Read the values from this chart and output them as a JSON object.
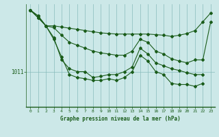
{
  "xlabel": "Graphe pression niveau de la mer (hPa)",
  "background_color": "#cce8e8",
  "grid_color": "#88bbbb",
  "line_color": "#1a5c1a",
  "xlim": [
    -0.5,
    23.5
  ],
  "ylim_bottom": 1005.0,
  "ylim_top": 1022.5,
  "ytick_label": "1011",
  "ytick_value": 1011,
  "xticklabels": [
    "0",
    "1",
    "2",
    "3",
    "4",
    "5",
    "6",
    "7",
    "8",
    "9",
    "10",
    "11",
    "12",
    "13",
    "14",
    "15",
    "16",
    "17",
    "18",
    "19",
    "20",
    "21",
    "22",
    "23"
  ],
  "series": [
    [
      1021.5,
      1020.5,
      1018.8,
      1018.8,
      1018.6,
      1018.4,
      1018.2,
      1018.0,
      1017.8,
      1017.6,
      1017.5,
      1017.4,
      1017.4,
      1017.4,
      1017.4,
      1017.4,
      1017.3,
      1017.2,
      1017.0,
      1017.2,
      1017.5,
      1018.0,
      1019.5,
      1021.0
    ],
    [
      1021.5,
      1020.5,
      1018.8,
      1018.5,
      1017.2,
      1016.0,
      1015.5,
      1015.0,
      1014.5,
      1014.2,
      1014.0,
      1013.8,
      1013.8,
      1014.5,
      1016.5,
      1016.0,
      1014.5,
      1014.0,
      1013.2,
      1012.8,
      1012.5,
      1013.0,
      1013.0,
      1019.5
    ],
    [
      1021.5,
      1020.2,
      1018.8,
      1016.8,
      1013.0,
      1011.5,
      1011.0,
      1011.0,
      1010.0,
      1010.2,
      1010.5,
      1010.5,
      1011.0,
      1011.8,
      1015.0,
      1014.0,
      1012.5,
      1012.0,
      1011.5,
      1011.2,
      1010.8,
      1010.5,
      1010.5,
      null
    ],
    [
      1021.5,
      1020.2,
      1018.8,
      1016.5,
      1013.5,
      1010.5,
      1010.0,
      1009.8,
      1009.5,
      1009.5,
      1009.8,
      1009.5,
      1010.0,
      1011.0,
      1013.8,
      1012.8,
      1011.0,
      1010.5,
      1009.0,
      1008.8,
      1008.8,
      1008.5,
      1009.0,
      null
    ]
  ]
}
